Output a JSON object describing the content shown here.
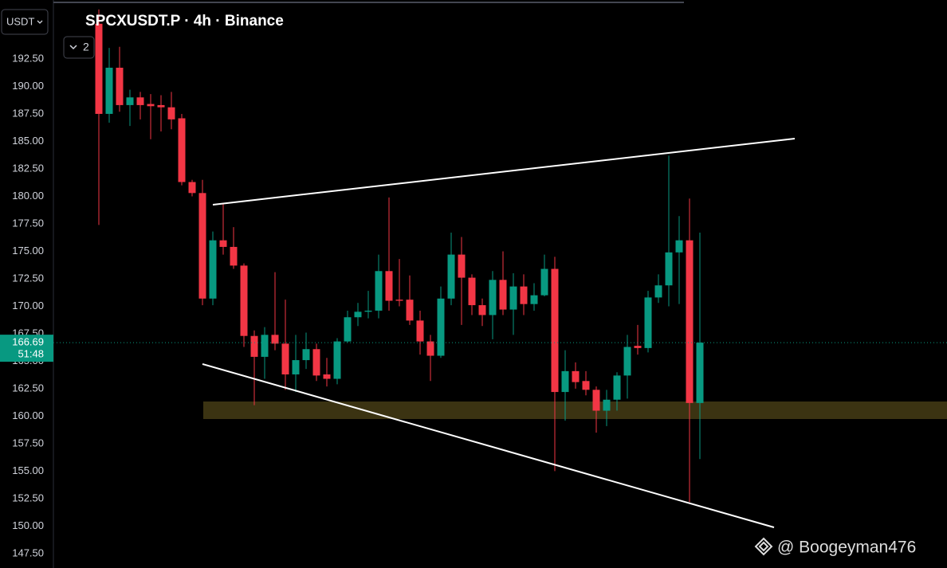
{
  "chart_data": {
    "type": "candlestick",
    "title": "SPCXUSDT.P · 4h · Binance",
    "currency": "USDT",
    "hidden_indicators": 2,
    "last_price": 166.69,
    "countdown": "51:48",
    "watermark": "@ Boogeyman476",
    "up_color": "#089981",
    "down_color": "#f23645",
    "ylim": [
      146.19,
      197.86
    ],
    "yticks": [
      {
        "value": 147.5,
        "label": "147.50"
      },
      {
        "value": 150,
        "label": "150.00"
      },
      {
        "value": 152.5,
        "label": "152.50"
      },
      {
        "value": 155,
        "label": "155.00"
      },
      {
        "value": 157.5,
        "label": "157.50"
      },
      {
        "value": 160,
        "label": "160.00"
      },
      {
        "value": 162.5,
        "label": "162.50"
      },
      {
        "value": 165,
        "label": "165.00"
      },
      {
        "value": 167.5,
        "label": "167.50"
      },
      {
        "value": 170,
        "label": "170.00"
      },
      {
        "value": 172.5,
        "label": "172.50"
      },
      {
        "value": 175,
        "label": "175.00"
      },
      {
        "value": 177.5,
        "label": "177.50"
      },
      {
        "value": 180,
        "label": "180.00"
      },
      {
        "value": 182.5,
        "label": "182.50"
      },
      {
        "value": 185,
        "label": "185.00"
      },
      {
        "value": 187.5,
        "label": "187.50"
      },
      {
        "value": 190,
        "label": "190.00"
      },
      {
        "value": 192.5,
        "label": "192.50"
      }
    ],
    "open": [
      195.7,
      187.5,
      191.7,
      188.3,
      189,
      188.4,
      188.3,
      188.1,
      187.1,
      181.3,
      180.3,
      170.7,
      176,
      175.4,
      173.7,
      167.3,
      165.4,
      167.4,
      166.6,
      163.8,
      165.1,
      166.1,
      163.8,
      163.4,
      166.8,
      169,
      169.5,
      169.6,
      173.2,
      170.6,
      170.6,
      168.7,
      166.8,
      165.5,
      170.7,
      174.7,
      172.6,
      170.1,
      169.2,
      172.4,
      169.7,
      171.8,
      170.2,
      171,
      173.4,
      162.2,
      164.1,
      163.2,
      162.4,
      160.5,
      161.5,
      163.7,
      166.4,
      166.2,
      170.8,
      171.9,
      174.9,
      176,
      161.2
    ],
    "high": [
      197,
      193.5,
      193.6,
      189.7,
      189.5,
      189.3,
      189.2,
      189.5,
      187.5,
      181.5,
      181.5,
      176.8,
      179.4,
      177.2,
      173.9,
      167.8,
      168.1,
      173.1,
      170.6,
      167.4,
      167.6,
      166.6,
      165.3,
      167.1,
      169.6,
      170.3,
      171.4,
      174.7,
      179.9,
      174.3,
      172.8,
      169.6,
      167.4,
      171.8,
      176.7,
      176.3,
      172.9,
      170.7,
      173.2,
      175,
      173,
      172.9,
      172.1,
      174.7,
      174.5,
      166,
      164.9,
      164.1,
      162.7,
      162.4,
      164,
      167.4,
      168.3,
      171.4,
      172.9,
      183.7,
      178.2,
      179.8,
      176.7
    ],
    "low": [
      177.4,
      186.7,
      187.7,
      186.4,
      187,
      185.2,
      185.9,
      186.1,
      181,
      180,
      170.1,
      170.1,
      174.7,
      173.4,
      166.3,
      161,
      163.4,
      166,
      162.4,
      162.2,
      164.3,
      163.2,
      162.7,
      162.9,
      166.7,
      168.2,
      168.9,
      168.9,
      169.6,
      170,
      168.3,
      165.6,
      163.2,
      165.3,
      170.1,
      168.3,
      169.2,
      168.2,
      167,
      169.2,
      167.4,
      169.2,
      169.6,
      170.9,
      155,
      159.6,
      162.5,
      161.9,
      158.5,
      159.1,
      160.5,
      161.6,
      165.6,
      165.8,
      170.3,
      170,
      170.2,
      152.2,
      156.1
    ],
    "close": [
      187.5,
      191.7,
      188.3,
      189,
      188.3,
      188.2,
      188.1,
      187,
      181.3,
      180.3,
      170.7,
      176,
      175.4,
      173.7,
      167.3,
      165.4,
      167.4,
      166.6,
      163.8,
      165.1,
      166.1,
      163.7,
      163.4,
      166.8,
      169,
      169.5,
      169.6,
      173.2,
      170.5,
      170.5,
      168.7,
      166.8,
      165.5,
      170.7,
      174.7,
      172.6,
      170.1,
      169.2,
      172.4,
      169.7,
      171.8,
      170.2,
      171,
      173.4,
      162.2,
      164.1,
      163.1,
      162.4,
      160.5,
      161.5,
      163.7,
      166.3,
      166.2,
      170.8,
      171.9,
      174.9,
      176,
      161.2,
      166.69
    ]
  }
}
